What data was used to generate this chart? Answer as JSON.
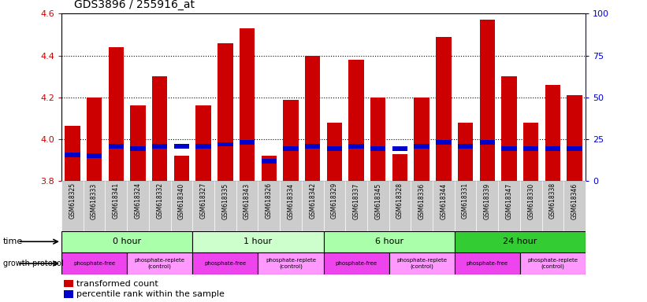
{
  "title": "GDS3896 / 255916_at",
  "samples": [
    "GSM618325",
    "GSM618333",
    "GSM618341",
    "GSM618324",
    "GSM618332",
    "GSM618340",
    "GSM618327",
    "GSM618335",
    "GSM618343",
    "GSM618326",
    "GSM618334",
    "GSM618342",
    "GSM618329",
    "GSM618337",
    "GSM618345",
    "GSM618328",
    "GSM618336",
    "GSM618344",
    "GSM618331",
    "GSM618339",
    "GSM618347",
    "GSM618330",
    "GSM618338",
    "GSM618346"
  ],
  "transformed_counts": [
    4.065,
    4.2,
    4.44,
    4.16,
    4.3,
    3.92,
    4.16,
    4.46,
    4.53,
    3.92,
    4.19,
    4.4,
    4.08,
    4.38,
    4.2,
    3.93,
    4.2,
    4.49,
    4.08,
    4.57,
    4.3,
    4.08,
    4.26,
    4.21
  ],
  "percentile_ranks": [
    3.915,
    3.91,
    3.955,
    3.945,
    3.955,
    3.955,
    3.955,
    3.965,
    3.975,
    3.885,
    3.945,
    3.955,
    3.945,
    3.955,
    3.945,
    3.945,
    3.955,
    3.975,
    3.955,
    3.975,
    3.945,
    3.945,
    3.945,
    3.945
  ],
  "bar_color": "#cc0000",
  "percentile_color": "#0000cc",
  "ylim_left": [
    3.8,
    4.6
  ],
  "yticks_left": [
    3.8,
    4.0,
    4.2,
    4.4,
    4.6
  ],
  "yticks_right": [
    0,
    25,
    50,
    75,
    100
  ],
  "ylabel_left_color": "#cc0000",
  "ylabel_right_color": "#0000cc",
  "time_groups": [
    {
      "label": "0 hour",
      "start": 0,
      "end": 6,
      "color": "#aaffaa"
    },
    {
      "label": "1 hour",
      "start": 6,
      "end": 12,
      "color": "#ccffcc"
    },
    {
      "label": "6 hour",
      "start": 12,
      "end": 18,
      "color": "#aaffaa"
    },
    {
      "label": "24 hour",
      "start": 18,
      "end": 24,
      "color": "#33cc33"
    }
  ],
  "protocol_groups": [
    {
      "label": "phosphate-free",
      "start": 0,
      "end": 3,
      "color": "#ee44ee"
    },
    {
      "label": "phosphate-replete\n(control)",
      "start": 3,
      "end": 6,
      "color": "#ff99ff"
    },
    {
      "label": "phosphate-free",
      "start": 6,
      "end": 9,
      "color": "#ee44ee"
    },
    {
      "label": "phosphate-replete\n(control)",
      "start": 9,
      "end": 12,
      "color": "#ff99ff"
    },
    {
      "label": "phosphate-free",
      "start": 12,
      "end": 15,
      "color": "#ee44ee"
    },
    {
      "label": "phosphate-replete\n(control)",
      "start": 15,
      "end": 18,
      "color": "#ff99ff"
    },
    {
      "label": "phosphate-free",
      "start": 18,
      "end": 21,
      "color": "#ee44ee"
    },
    {
      "label": "phosphate-replete\n(control)",
      "start": 21,
      "end": 24,
      "color": "#ff99ff"
    }
  ],
  "xticklabel_bg": "#cccccc",
  "grid_yticks": [
    4.0,
    4.2,
    4.4
  ],
  "grid_color": "#000000"
}
